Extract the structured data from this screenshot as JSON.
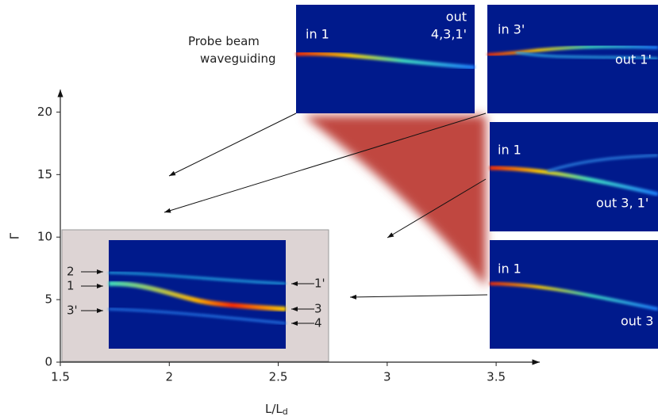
{
  "chart_data": {
    "type": "axes",
    "title": "Probe beam waveguiding",
    "xlabel": "L/L",
    "xlabel_sub": "d",
    "ylabel": "Γ",
    "xlim": [
      1.5,
      3.7
    ],
    "ylim": [
      0,
      21.8
    ],
    "xticks": [
      {
        "value": 1.5,
        "label": "1.5"
      },
      2,
      {
        "value": 2.5,
        "label": "2.5"
      },
      3,
      {
        "value": 3.5,
        "label": "3.5"
      }
    ],
    "yticks": [
      0,
      5,
      10,
      15,
      20
    ]
  },
  "panels": [
    {
      "labels": [
        "in 1",
        "out",
        "4,3,1'"
      ]
    },
    {
      "labels": [
        "in 3'",
        "out 1'"
      ]
    },
    {
      "labels": [
        "in 1",
        "out 3, 1'"
      ]
    },
    {
      "labels": [
        "in 1",
        "out 3"
      ]
    }
  ],
  "inset": {
    "left_labels": [
      "2",
      "1",
      "3'"
    ],
    "right_labels": [
      "1'",
      "3",
      "4"
    ]
  }
}
